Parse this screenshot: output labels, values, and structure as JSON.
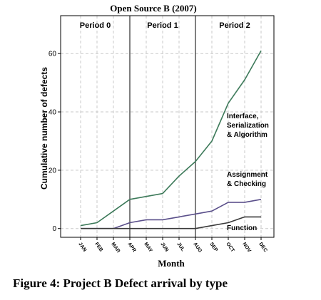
{
  "chart_data": {
    "type": "line",
    "title": "Open Source B (2007)",
    "xlabel": "Month",
    "ylabel": "Cumulative number of defects",
    "categories": [
      "JAN",
      "FEB",
      "MAR",
      "APR",
      "MAY",
      "JUN",
      "JUL",
      "AUG",
      "SEP",
      "OCT",
      "NOV",
      "DEC"
    ],
    "ylim": [
      -3,
      73
    ],
    "yticks": [
      0,
      20,
      40,
      60
    ],
    "grid": true,
    "periods": [
      {
        "label": "Period 0",
        "start_index": 0
      },
      {
        "label": "Period 1",
        "start_index": 3
      },
      {
        "label": "Period 2",
        "start_index": 7
      }
    ],
    "series": [
      {
        "name": "Interface, Serialization & Algorithm",
        "label_lines": [
          "Interface,",
          "Serialization",
          "& Algorithm"
        ],
        "color": "#3d7a5a",
        "values": [
          1,
          2,
          6,
          10,
          11,
          12,
          18,
          23,
          30,
          43,
          51,
          61
        ]
      },
      {
        "name": "Assignment & Checking",
        "label_lines": [
          "Assignment",
          "& Checking"
        ],
        "color": "#5a4f8a",
        "values": [
          0,
          0,
          0,
          2,
          3,
          3,
          4,
          5,
          6,
          9,
          9,
          10
        ]
      },
      {
        "name": "Function",
        "label_lines": [
          "Function"
        ],
        "color": "#3a3a3a",
        "values": [
          0,
          0,
          0,
          0,
          0,
          0,
          0,
          0,
          1,
          2,
          4,
          4
        ]
      }
    ]
  },
  "caption": "Figure 4: Project B Defect arrival by type"
}
